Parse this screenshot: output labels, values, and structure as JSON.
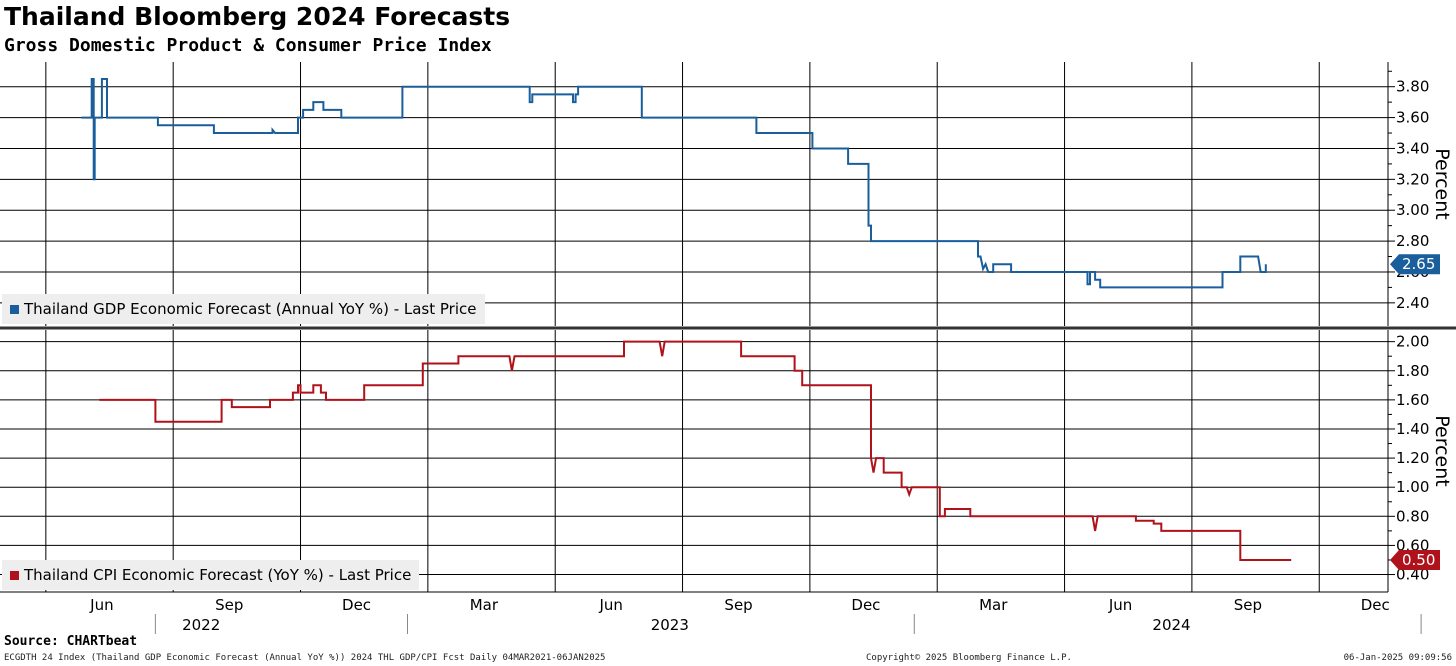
{
  "header": {
    "title": "Thailand Bloomberg 2024 Forecasts",
    "subtitle": "Gross Domestic Product & Consumer Price Index"
  },
  "footer": {
    "source": "Source: CHARTbeat",
    "left": "ECGDTH 24 Index (Thailand GDP Economic Forecast (Annual YoY %)) 2024 THL GDP/CPI Fcst  Daily 04MAR2021-06JAN2025",
    "center": "Copyright© 2025 Bloomberg Finance L.P.",
    "right": "06-Jan-2025 09:09:56"
  },
  "colors": {
    "gdp": "#1a5e9c",
    "cpi": "#b0121b",
    "legend_bg": "#eeeeee"
  },
  "chart_data": [
    {
      "type": "line",
      "name": "gdp-panel",
      "legend": "Thailand GDP Economic Forecast (Annual YoY %) - Last Price",
      "ylabel": "Percent",
      "ylim": [
        2.25,
        3.96
      ],
      "yticks": [
        2.4,
        2.6,
        2.8,
        3.0,
        3.2,
        3.4,
        3.6,
        3.8
      ],
      "ytick_labels": [
        "2.40",
        "2.60",
        "2.80",
        "3.00",
        "3.20",
        "3.40",
        "3.60",
        "3.80"
      ],
      "last_value": 2.65,
      "last_label": "2.65",
      "color": "#1a5e9c",
      "points": [
        [
          2022.32,
          3.6
        ],
        [
          2022.36,
          3.6
        ],
        [
          2022.36,
          3.85
        ],
        [
          2022.368,
          3.85
        ],
        [
          2022.368,
          3.2
        ],
        [
          2022.372,
          3.2
        ],
        [
          2022.372,
          3.6
        ],
        [
          2022.4,
          3.6
        ],
        [
          2022.4,
          3.85
        ],
        [
          2022.42,
          3.85
        ],
        [
          2022.42,
          3.6
        ],
        [
          2022.62,
          3.6
        ],
        [
          2022.62,
          3.55
        ],
        [
          2022.84,
          3.55
        ],
        [
          2022.84,
          3.5
        ],
        [
          2023.07,
          3.5
        ],
        [
          2023.07,
          3.52
        ],
        [
          2023.08,
          3.5
        ],
        [
          2023.17,
          3.5
        ],
        [
          2023.17,
          3.6
        ],
        [
          2023.19,
          3.6
        ],
        [
          2023.19,
          3.65
        ],
        [
          2023.23,
          3.65
        ],
        [
          2023.23,
          3.7
        ],
        [
          2023.27,
          3.7
        ],
        [
          2023.27,
          3.65
        ],
        [
          2023.34,
          3.65
        ],
        [
          2023.34,
          3.6
        ],
        [
          2023.58,
          3.6
        ],
        [
          2023.58,
          3.8
        ],
        [
          2024.08,
          3.8
        ],
        [
          2024.08,
          3.7
        ],
        [
          2024.09,
          3.7
        ],
        [
          2024.09,
          3.75
        ],
        [
          2024.25,
          3.75
        ],
        [
          2024.25,
          3.7
        ],
        [
          2024.26,
          3.7
        ],
        [
          2024.26,
          3.75
        ],
        [
          2024.27,
          3.75
        ],
        [
          2024.27,
          3.8
        ],
        [
          2024.52,
          3.8
        ],
        [
          2024.52,
          3.6
        ],
        [
          2024.97,
          3.6
        ],
        [
          2024.97,
          3.5
        ],
        [
          2025.19,
          3.5
        ],
        [
          2025.19,
          3.4
        ],
        [
          2025.33,
          3.4
        ],
        [
          2025.33,
          3.3
        ],
        [
          2025.41,
          3.3
        ],
        [
          2025.41,
          2.9
        ],
        [
          2025.42,
          2.9
        ],
        [
          2025.42,
          2.8
        ],
        [
          2025.84,
          2.8
        ],
        [
          2025.84,
          2.7
        ],
        [
          2025.85,
          2.7
        ],
        [
          2025.86,
          2.62
        ],
        [
          2025.87,
          2.65
        ],
        [
          2025.88,
          2.6
        ],
        [
          2025.9,
          2.6
        ],
        [
          2025.9,
          2.65
        ],
        [
          2025.97,
          2.65
        ],
        [
          2025.97,
          2.6
        ],
        [
          2026.27,
          2.6
        ],
        [
          2026.27,
          2.52
        ],
        [
          2026.28,
          2.52
        ],
        [
          2026.28,
          2.6
        ],
        [
          2026.3,
          2.6
        ],
        [
          2026.3,
          2.55
        ],
        [
          2026.32,
          2.55
        ],
        [
          2026.32,
          2.5
        ],
        [
          2026.8,
          2.5
        ],
        [
          2026.8,
          2.6
        ],
        [
          2026.87,
          2.6
        ],
        [
          2026.87,
          2.7
        ],
        [
          2026.94,
          2.7
        ],
        [
          2026.95,
          2.6
        ],
        [
          2026.97,
          2.6
        ],
        [
          2026.97,
          2.65
        ]
      ]
    },
    {
      "type": "line",
      "name": "cpi-panel",
      "legend": "Thailand CPI Economic Forecast (YoY %) - Last Price",
      "ylabel": "Percent",
      "ylim": [
        0.28,
        2.08
      ],
      "yticks": [
        0.4,
        0.6,
        0.8,
        1.0,
        1.2,
        1.4,
        1.6,
        1.8,
        2.0
      ],
      "ytick_labels": [
        "0.40",
        "0.60",
        "0.80",
        "1.00",
        "1.20",
        "1.40",
        "1.60",
        "1.80",
        "2.00"
      ],
      "last_value": 0.5,
      "last_label": "0.50",
      "color": "#b0121b",
      "points": [
        [
          2022.39,
          1.6
        ],
        [
          2022.61,
          1.6
        ],
        [
          2022.61,
          1.45
        ],
        [
          2022.87,
          1.45
        ],
        [
          2022.87,
          1.6
        ],
        [
          2022.91,
          1.6
        ],
        [
          2022.91,
          1.55
        ],
        [
          2023.06,
          1.55
        ],
        [
          2023.06,
          1.6
        ],
        [
          2023.15,
          1.6
        ],
        [
          2023.15,
          1.65
        ],
        [
          2023.17,
          1.65
        ],
        [
          2023.17,
          1.7
        ],
        [
          2023.18,
          1.7
        ],
        [
          2023.18,
          1.65
        ],
        [
          2023.23,
          1.65
        ],
        [
          2023.23,
          1.7
        ],
        [
          2023.26,
          1.7
        ],
        [
          2023.26,
          1.65
        ],
        [
          2023.28,
          1.65
        ],
        [
          2023.28,
          1.6
        ],
        [
          2023.43,
          1.6
        ],
        [
          2023.43,
          1.7
        ],
        [
          2023.66,
          1.7
        ],
        [
          2023.66,
          1.85
        ],
        [
          2023.8,
          1.85
        ],
        [
          2023.8,
          1.9
        ],
        [
          2024.0,
          1.9
        ],
        [
          2024.01,
          1.8
        ],
        [
          2024.02,
          1.9
        ],
        [
          2024.45,
          1.9
        ],
        [
          2024.45,
          2.0
        ],
        [
          2024.59,
          2.0
        ],
        [
          2024.6,
          1.9
        ],
        [
          2024.61,
          2.0
        ],
        [
          2024.91,
          2.0
        ],
        [
          2024.91,
          1.9
        ],
        [
          2025.12,
          1.9
        ],
        [
          2025.12,
          1.8
        ],
        [
          2025.15,
          1.8
        ],
        [
          2025.15,
          1.7
        ],
        [
          2025.42,
          1.7
        ],
        [
          2025.42,
          1.2
        ],
        [
          2025.43,
          1.1
        ],
        [
          2025.44,
          1.2
        ],
        [
          2025.47,
          1.2
        ],
        [
          2025.47,
          1.1
        ],
        [
          2025.54,
          1.1
        ],
        [
          2025.54,
          1.0
        ],
        [
          2025.56,
          1.0
        ],
        [
          2025.57,
          0.95
        ],
        [
          2025.58,
          1.0
        ],
        [
          2025.69,
          1.0
        ],
        [
          2025.69,
          0.8
        ],
        [
          2025.71,
          0.8
        ],
        [
          2025.71,
          0.85
        ],
        [
          2025.81,
          0.85
        ],
        [
          2025.81,
          0.8
        ],
        [
          2026.29,
          0.8
        ],
        [
          2026.3,
          0.7
        ],
        [
          2026.31,
          0.8
        ],
        [
          2026.46,
          0.8
        ],
        [
          2026.46,
          0.77
        ],
        [
          2026.53,
          0.77
        ],
        [
          2026.53,
          0.75
        ],
        [
          2026.56,
          0.75
        ],
        [
          2026.56,
          0.7
        ],
        [
          2026.87,
          0.7
        ],
        [
          2026.87,
          0.5
        ],
        [
          2027.07,
          0.5
        ]
      ]
    }
  ],
  "x_axis": {
    "months": [
      {
        "label": "Jun",
        "pos": 2022.4
      },
      {
        "label": "Sep",
        "pos": 2022.9
      },
      {
        "label": "Dec",
        "pos": 2023.4
      },
      {
        "label": "Mar",
        "pos": 2023.9
      },
      {
        "label": "Jun",
        "pos": 2024.4
      },
      {
        "label": "Sep",
        "pos": 2024.9
      },
      {
        "label": "Dec",
        "pos": 2025.4
      },
      {
        "label": "Mar",
        "pos": 2025.9
      },
      {
        "label": "Jun",
        "pos": 2026.4
      },
      {
        "label": "Sep",
        "pos": 2026.9
      },
      {
        "label": "Dec",
        "pos": 2027.4
      }
    ],
    "years": [
      {
        "label": "2022",
        "pos": 2022.79
      },
      {
        "label": "2023",
        "pos": 2024.63
      },
      {
        "label": "2024",
        "pos": 2026.6
      }
    ],
    "year_separators": [
      2022.61,
      2023.6,
      2025.59,
      2027.58
    ]
  }
}
